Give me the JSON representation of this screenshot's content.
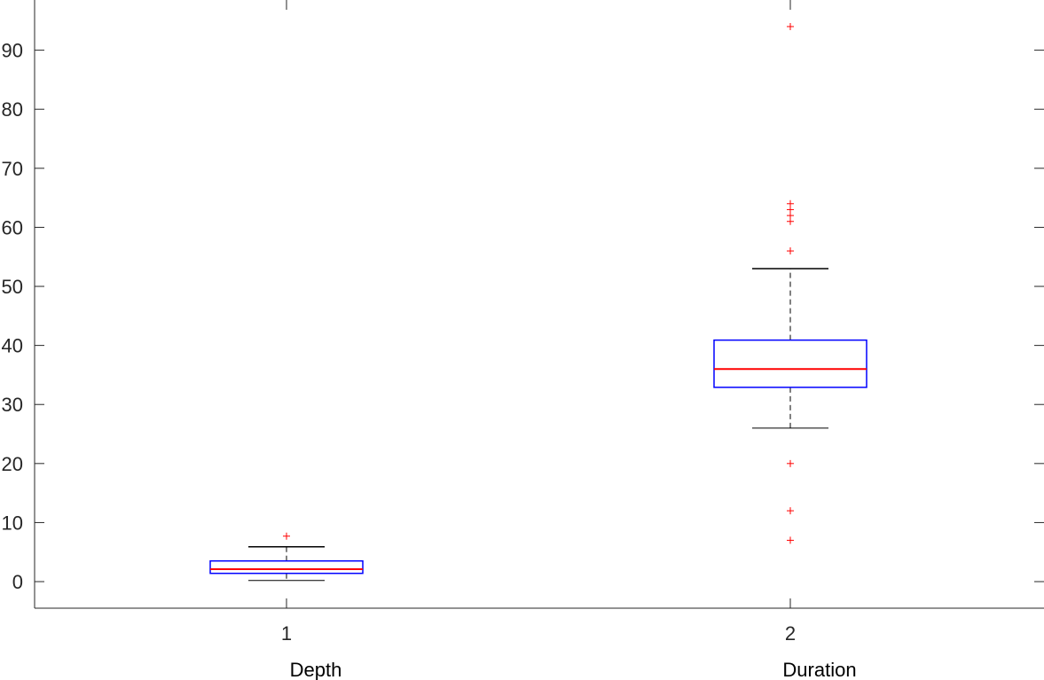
{
  "chart_data": {
    "type": "boxplot",
    "categories": [
      "1",
      "2"
    ],
    "group_labels": [
      "Depth",
      "Duration"
    ],
    "ylim": [
      -4.5,
      98.5
    ],
    "yticks": [
      0,
      10,
      20,
      30,
      40,
      50,
      60,
      70,
      80,
      90
    ],
    "grid": false,
    "boxes": [
      {
        "category": "1",
        "label": "Depth",
        "whisker_low": 0.2,
        "q1": 1.4,
        "median": 2.1,
        "q3": 3.5,
        "whisker_high": 5.9,
        "outliers": [
          7.7
        ]
      },
      {
        "category": "2",
        "label": "Duration",
        "whisker_low": 26,
        "q1": 32.9,
        "median": 36,
        "q3": 40.9,
        "whisker_high": 53,
        "outliers": [
          94,
          64,
          63,
          62,
          61,
          56,
          20,
          12,
          7
        ]
      }
    ],
    "colors": {
      "box": "#0000ff",
      "median": "#ff0000",
      "whisker": "#000000",
      "outlier": "#ff0000",
      "axis": "#262626"
    }
  }
}
